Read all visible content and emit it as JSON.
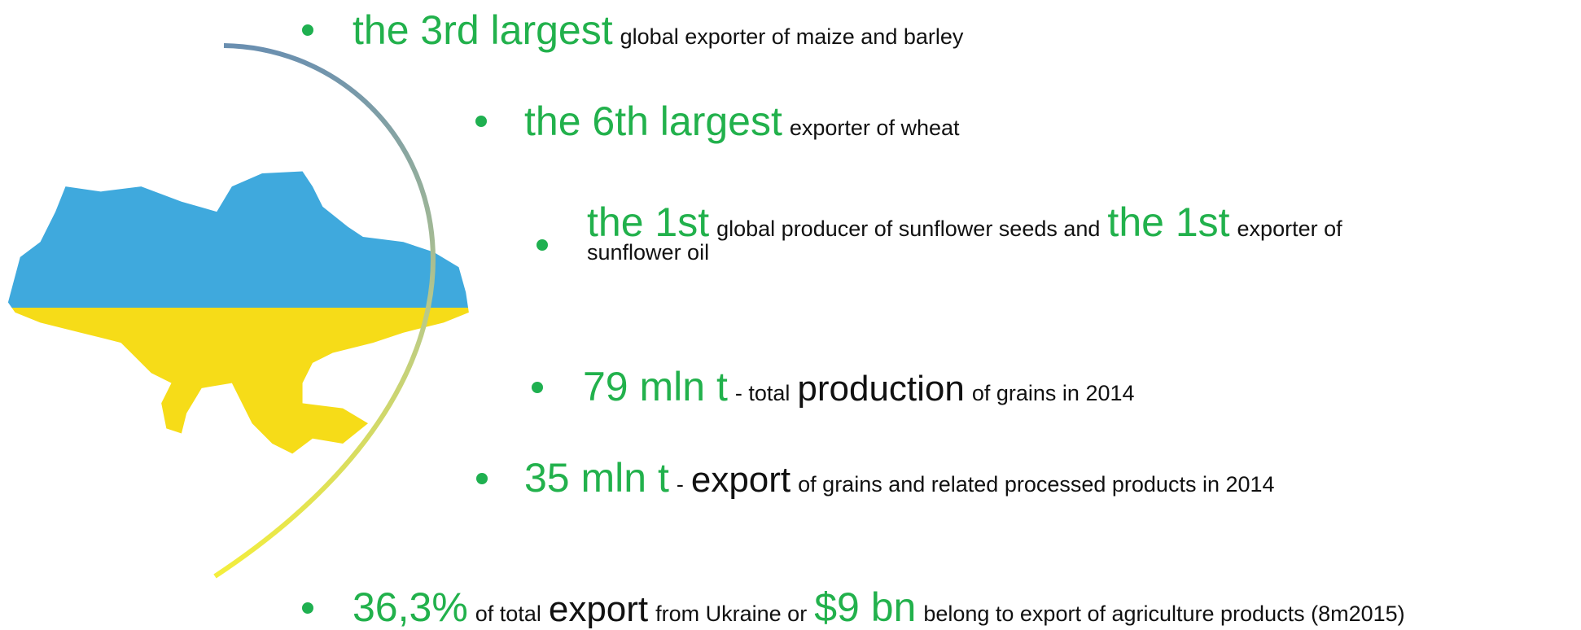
{
  "bullets": [
    {
      "runs": [
        "the 3rd largest",
        "global exporter of maize and barley"
      ]
    },
    {
      "runs": [
        "the 6th largest",
        "exporter of wheat"
      ]
    },
    {
      "runs": [
        "the 1st",
        "global producer of sunflower seeds and",
        "the 1st",
        "exporter of",
        "sunflower  oil"
      ]
    },
    {
      "runs": [
        "79 mln t",
        "- total",
        "production",
        "of grains in 2014"
      ]
    },
    {
      "runs": [
        "35 mln t",
        "-",
        "export",
        "of grains and related processed products in 2014"
      ]
    },
    {
      "runs": [
        "36,3%",
        "of total",
        "export",
        "from Ukraine or",
        "$9 bn",
        "belong to export of agriculture products (8m2015)"
      ]
    }
  ]
}
